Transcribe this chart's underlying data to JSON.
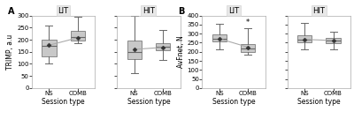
{
  "panel_A": {
    "label": "A",
    "ylabel": "TRIMP, a.u",
    "xlabel": "Session type",
    "ylim": [
      0,
      300
    ],
    "yticks": [
      0,
      50,
      100,
      150,
      200,
      250,
      300
    ],
    "subpanels": [
      {
        "title": "LIT",
        "boxes": [
          {
            "label": "NS",
            "whislo": 100,
            "q1": 130,
            "med": 175,
            "q3": 200,
            "whishi": 260,
            "mean": 177,
            "annotation": null
          },
          {
            "label": "COMB",
            "whislo": 185,
            "q1": 195,
            "med": 210,
            "q3": 235,
            "whishi": 295,
            "mean": 208,
            "annotation": null
          }
        ],
        "mean_line": [
          177,
          208
        ]
      },
      {
        "title": "HIT",
        "boxes": [
          {
            "label": "NS",
            "whislo": 60,
            "q1": 120,
            "med": 148,
            "q3": 195,
            "whishi": 300,
            "mean": 160,
            "annotation": null
          },
          {
            "label": "COMB",
            "whislo": 115,
            "q1": 155,
            "med": 170,
            "q3": 185,
            "whishi": 240,
            "mean": 168,
            "annotation": null
          }
        ],
        "mean_line": [
          160,
          168
        ]
      }
    ]
  },
  "panel_B": {
    "label": "B",
    "ylabel": "AvFnet, N",
    "xlabel": "Session type",
    "ylim": [
      0,
      400
    ],
    "yticks": [
      0,
      50,
      100,
      150,
      200,
      250,
      300,
      350,
      400
    ],
    "subpanels": [
      {
        "title": "LIT",
        "boxes": [
          {
            "label": "NS",
            "whislo": 215,
            "q1": 255,
            "med": 272,
            "q3": 295,
            "whishi": 355,
            "mean": 272,
            "annotation": null
          },
          {
            "label": "COMB",
            "whislo": 182,
            "q1": 198,
            "med": 218,
            "q3": 242,
            "whishi": 332,
            "mean": 225,
            "annotation": "*"
          }
        ],
        "mean_line": [
          272,
          225
        ]
      },
      {
        "title": "HIT",
        "boxes": [
          {
            "label": "NS",
            "whislo": 215,
            "q1": 250,
            "med": 265,
            "q3": 290,
            "whishi": 360,
            "mean": 268,
            "annotation": null
          },
          {
            "label": "COMB",
            "whislo": 215,
            "q1": 248,
            "med": 260,
            "q3": 278,
            "whishi": 308,
            "mean": 262,
            "annotation": null
          }
        ],
        "mean_line": [
          268,
          262
        ]
      }
    ]
  },
  "box_facecolor": "#c8c8c8",
  "box_edgecolor": "#888888",
  "mean_marker": "D",
  "mean_markersize": 2.5,
  "mean_color": "#333333",
  "line_color": "#aaaaaa",
  "whisker_color": "#666666",
  "median_color": "#666666",
  "cap_color": "#666666",
  "annotation_fontsize": 6,
  "title_fontsize": 6,
  "label_fontsize": 5.5,
  "tick_fontsize": 5,
  "panel_label_fontsize": 7,
  "title_bg_color": "#e8e8e8",
  "plot_bg_color": "#ffffff"
}
